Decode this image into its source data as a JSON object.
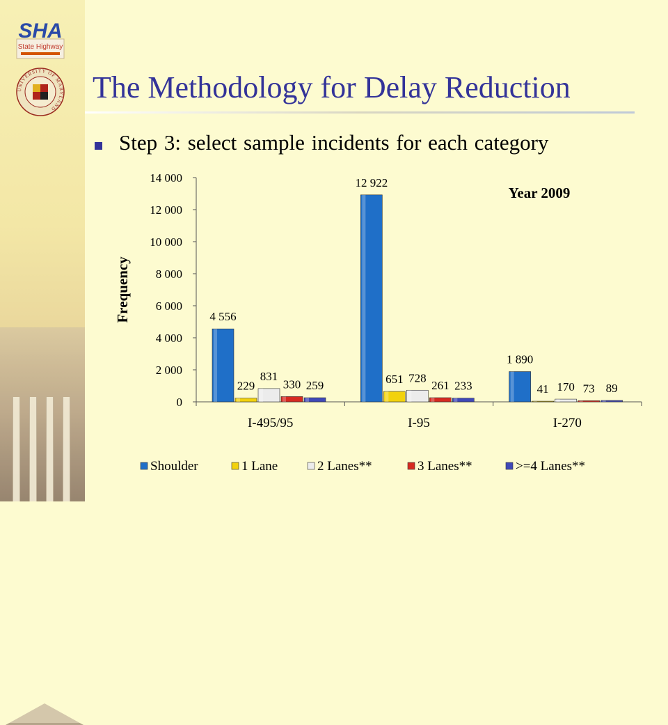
{
  "header": {
    "logo_text": "SHA",
    "logo_subtext": "State Highway",
    "seal_text": "UNIVERSITY OF MARYLAND"
  },
  "slide": {
    "title": "The Methodology for Delay Reduction",
    "bullet": "Step 3: select sample incidents for each category"
  },
  "chart_data": {
    "type": "bar",
    "annotation": "Year 2009",
    "ylabel": "Frequency",
    "xlabel": "",
    "ylim": [
      0,
      14000
    ],
    "ytick_labels": [
      "0",
      "2 000",
      "4 000",
      "6 000",
      "8 000",
      "10 000",
      "12 000",
      "14 000"
    ],
    "ytick_values": [
      0,
      2000,
      4000,
      6000,
      8000,
      10000,
      12000,
      14000
    ],
    "grid": false,
    "legend": "bottom",
    "categories": [
      "I-495/95",
      "I-95",
      "I-270"
    ],
    "series": [
      {
        "name": "Shoulder",
        "color": "#1f6fc8",
        "values": [
          4556,
          12922,
          1890
        ],
        "labels": [
          "4 556",
          "12 922",
          "1 890"
        ]
      },
      {
        "name": "1 Lane",
        "color": "#f2d20c",
        "values": [
          229,
          651,
          41
        ],
        "labels": [
          "229",
          "651",
          "41"
        ]
      },
      {
        "name": "2 Lanes**",
        "color": "#ececec",
        "values": [
          831,
          728,
          170
        ],
        "labels": [
          "831",
          "728",
          "170"
        ]
      },
      {
        "name": "3 Lanes**",
        "color": "#d62a20",
        "values": [
          330,
          261,
          73
        ],
        "labels": [
          "330",
          "261",
          "73"
        ]
      },
      {
        "name": ">=4 Lanes**",
        "color": "#3f48b8",
        "values": [
          259,
          233,
          89
        ],
        "labels": [
          "259",
          "233",
          "89"
        ]
      }
    ]
  }
}
